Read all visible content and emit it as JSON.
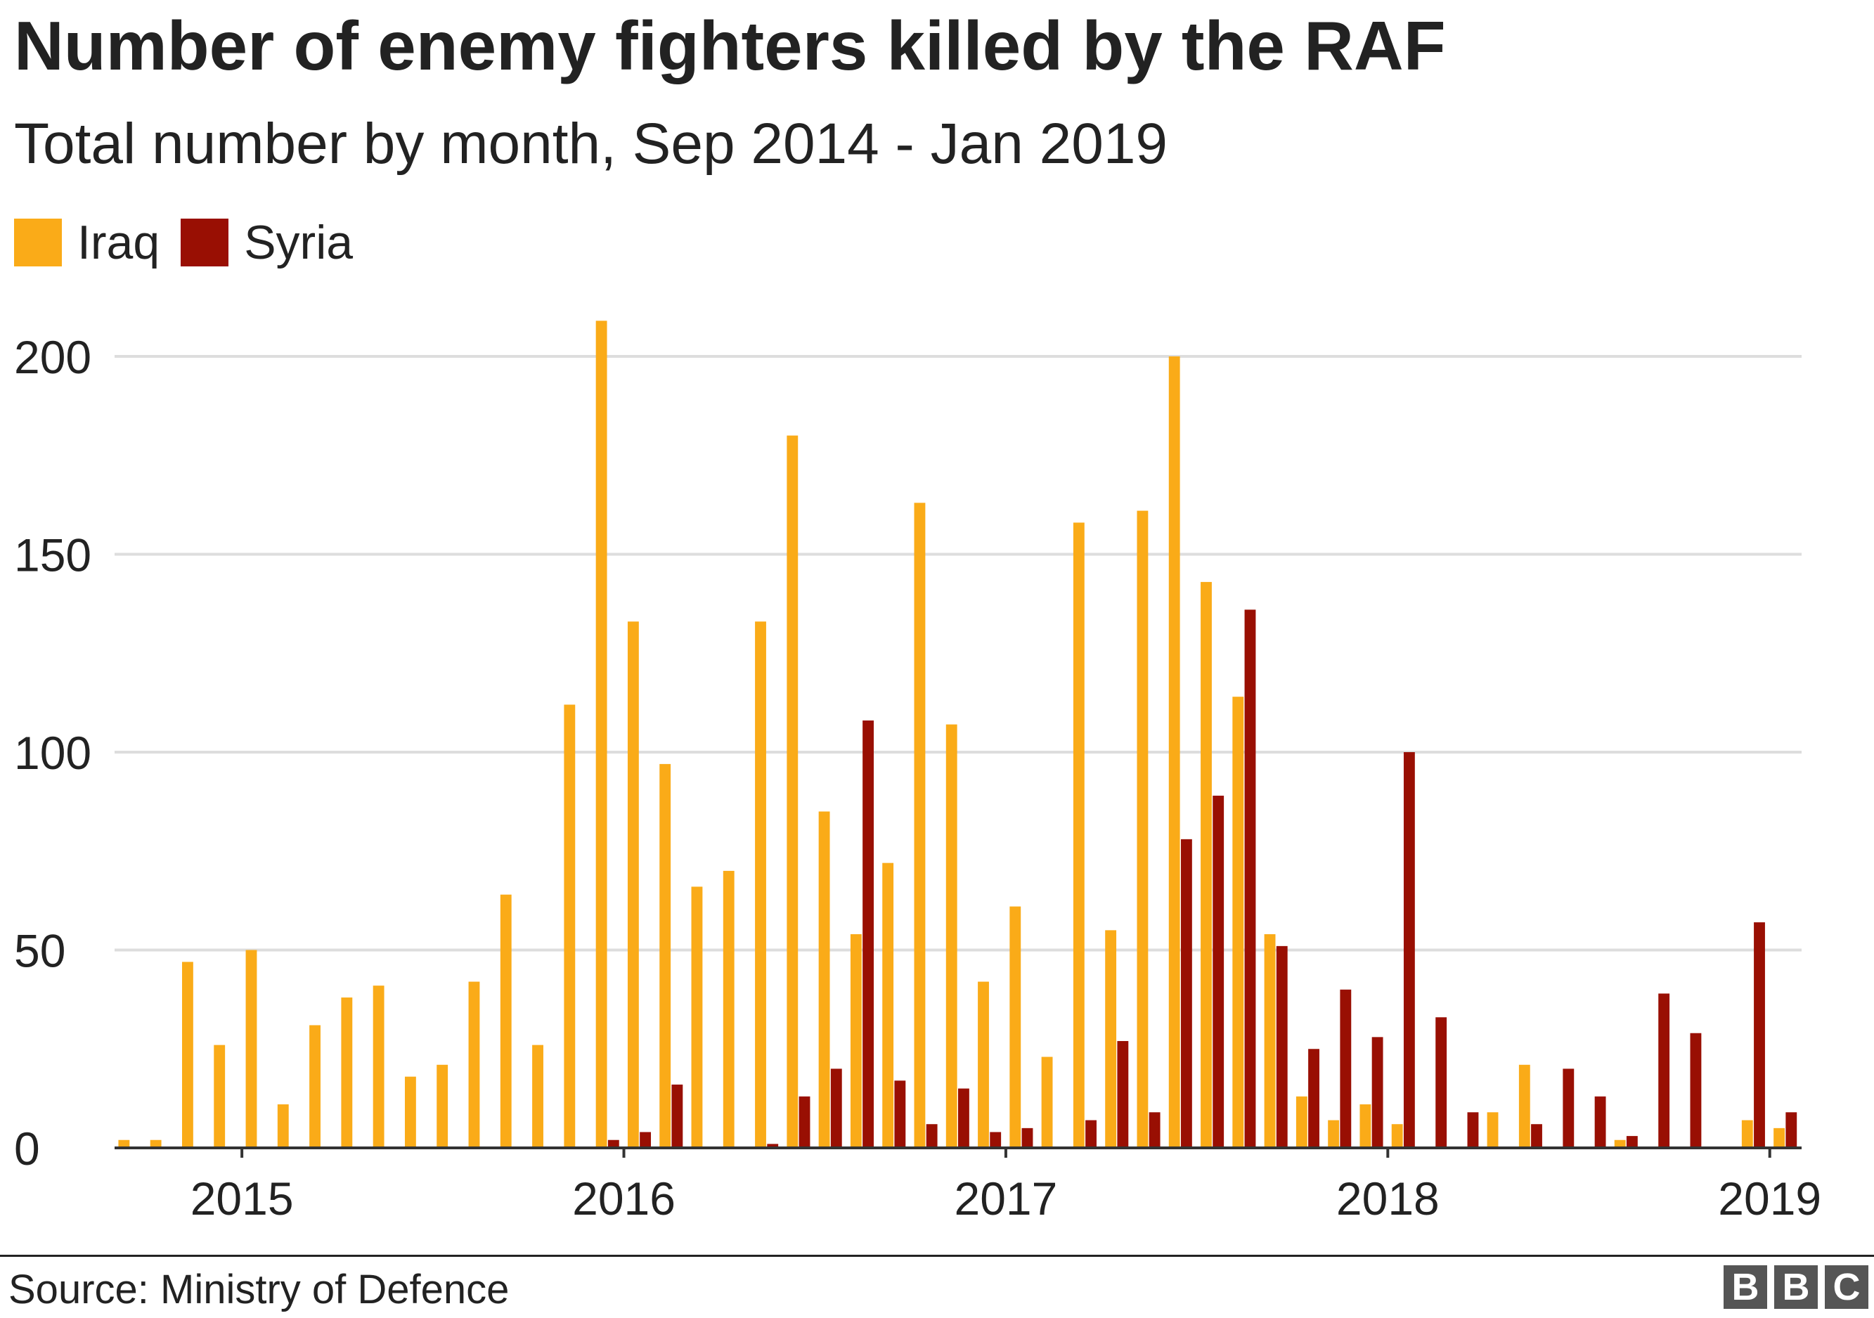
{
  "chart_data": {
    "type": "bar",
    "title": "Number of enemy fighters killed by the RAF",
    "subtitle": "Total number by month, Sep 2014 - Jan 2019",
    "xlabel": "",
    "ylabel": "",
    "ylim": [
      0,
      215
    ],
    "yticks": [
      0,
      50,
      100,
      150,
      200
    ],
    "xticks": [
      {
        "label": "2015",
        "index": 4
      },
      {
        "label": "2016",
        "index": 16
      },
      {
        "label": "2017",
        "index": 28
      },
      {
        "label": "2018",
        "index": 40
      },
      {
        "label": "2019",
        "index": 52
      }
    ],
    "categories": [
      "Sep 2014",
      "Oct 2014",
      "Nov 2014",
      "Dec 2014",
      "Jan 2015",
      "Feb 2015",
      "Mar 2015",
      "Apr 2015",
      "May 2015",
      "Jun 2015",
      "Jul 2015",
      "Aug 2015",
      "Sep 2015",
      "Oct 2015",
      "Nov 2015",
      "Dec 2015",
      "Jan 2016",
      "Feb 2016",
      "Mar 2016",
      "Apr 2016",
      "May 2016",
      "Jun 2016",
      "Jul 2016",
      "Aug 2016",
      "Sep 2016",
      "Oct 2016",
      "Nov 2016",
      "Dec 2016",
      "Jan 2017",
      "Feb 2017",
      "Mar 2017",
      "Apr 2017",
      "May 2017",
      "Jun 2017",
      "Jul 2017",
      "Aug 2017",
      "Sep 2017",
      "Oct 2017",
      "Nov 2017",
      "Dec 2017",
      "Jan 2018",
      "Feb 2018",
      "Mar 2018",
      "Apr 2018",
      "May 2018",
      "Jun 2018",
      "Jul 2018",
      "Aug 2018",
      "Sep 2018",
      "Oct 2018",
      "Nov 2018",
      "Dec 2018",
      "Jan 2019"
    ],
    "series": [
      {
        "name": "Iraq",
        "color": "#FAAB18",
        "values": [
          2,
          2,
          47,
          26,
          50,
          11,
          31,
          38,
          41,
          18,
          21,
          42,
          64,
          26,
          112,
          209,
          133,
          97,
          66,
          70,
          133,
          180,
          85,
          54,
          72,
          163,
          107,
          42,
          61,
          23,
          158,
          55,
          161,
          200,
          143,
          114,
          54,
          13,
          7,
          11,
          6,
          0,
          0,
          9,
          21,
          0,
          0,
          2,
          0,
          0,
          0,
          7,
          5
        ]
      },
      {
        "name": "Syria",
        "color": "#990F03",
        "values": [
          0,
          0,
          0,
          0,
          0,
          0,
          0,
          0,
          0,
          0,
          0,
          0,
          0,
          0,
          0,
          2,
          4,
          16,
          0,
          0,
          1,
          13,
          20,
          108,
          17,
          6,
          15,
          4,
          5,
          0,
          7,
          27,
          9,
          78,
          89,
          136,
          51,
          25,
          40,
          28,
          100,
          33,
          9,
          0,
          6,
          20,
          13,
          3,
          39,
          29,
          0,
          57,
          9
        ]
      }
    ]
  },
  "legend": {
    "iraq": "Iraq",
    "syria": "Syria"
  },
  "footer": {
    "source": "Source: Ministry of Defence",
    "logo": [
      "B",
      "B",
      "C"
    ]
  }
}
